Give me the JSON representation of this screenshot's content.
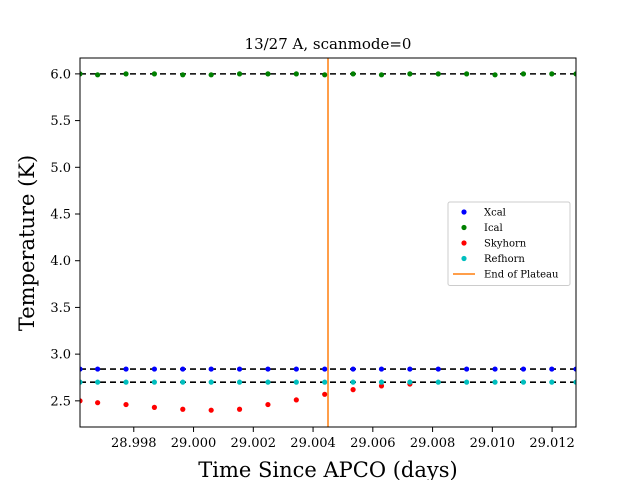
{
  "chart_data": {
    "type": "scatter",
    "title": "13/27 A, scanmode=0",
    "xlabel": "Time Since APCO (days)",
    "ylabel": "Temperature (K)",
    "xlim": [
      28.9962,
      29.0128
    ],
    "ylim": [
      2.22,
      6.17
    ],
    "x_ticks": [
      28.998,
      29.0,
      29.002,
      29.004,
      29.006,
      29.008,
      29.01,
      29.012
    ],
    "x_tick_labels": [
      "28.998",
      "29.000",
      "29.002",
      "29.004",
      "29.006",
      "29.008",
      "29.010",
      "29.012"
    ],
    "y_ticks": [
      2.5,
      3.0,
      3.5,
      4.0,
      4.5,
      5.0,
      5.5,
      6.0
    ],
    "y_tick_labels": [
      "2.5",
      "3.0",
      "3.5",
      "4.0",
      "4.5",
      "5.0",
      "5.5",
      "6.0"
    ],
    "grid": false,
    "legend_position": "center-right",
    "x": [
      28.9962,
      28.99679,
      28.99774,
      28.99869,
      28.99964,
      29.00059,
      29.00154,
      29.00249,
      29.00344,
      29.00439,
      29.00534,
      29.00629,
      29.00724,
      29.00819,
      29.00914,
      29.01009,
      29.01104,
      29.01199,
      29.0128
    ],
    "reference_lines": [
      {
        "y": 6.0,
        "style": "dashed",
        "color": "#000000"
      },
      {
        "y": 2.84,
        "style": "dashed",
        "color": "#000000"
      },
      {
        "y": 2.7,
        "style": "dashed",
        "color": "#000000"
      }
    ],
    "vertical_line": {
      "name": "End of Plateau",
      "x": 29.0045,
      "color": "#ff7f0e"
    },
    "series": [
      {
        "name": "Xcal",
        "color": "#0000ff",
        "values": [
          2.84,
          2.84,
          2.84,
          2.84,
          2.84,
          2.84,
          2.84,
          2.84,
          2.84,
          2.84,
          2.84,
          2.84,
          2.84,
          2.84,
          2.84,
          2.84,
          2.84,
          2.84,
          2.84
        ]
      },
      {
        "name": "Ical",
        "color": "#008000",
        "values": [
          6.0,
          5.99,
          6.0,
          6.0,
          5.99,
          5.99,
          6.0,
          6.0,
          6.0,
          5.99,
          6.0,
          5.99,
          6.0,
          6.0,
          6.0,
          5.99,
          6.0,
          6.0,
          6.0
        ]
      },
      {
        "name": "Skyhorn",
        "color": "#ff0000",
        "values": [
          2.5,
          2.48,
          2.46,
          2.43,
          2.41,
          2.4,
          2.41,
          2.46,
          2.51,
          2.57,
          2.62,
          2.66,
          2.68,
          null,
          null,
          null,
          null,
          null,
          null
        ]
      },
      {
        "name": "Refhorn",
        "color": "#00bfbf",
        "values": [
          2.7,
          2.7,
          2.7,
          2.7,
          2.7,
          2.7,
          2.7,
          2.7,
          2.7,
          2.7,
          2.7,
          2.7,
          2.7,
          2.7,
          2.7,
          2.7,
          2.7,
          2.7,
          2.7
        ]
      }
    ]
  }
}
